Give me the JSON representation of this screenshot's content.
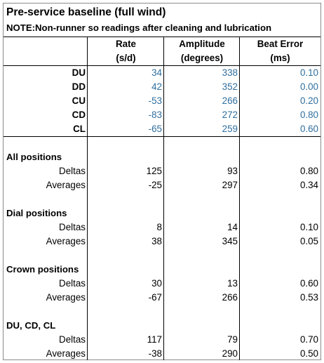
{
  "title": "Pre-service baseline (full wind)",
  "note": "NOTE:Non-runner so readings after cleaning and lubrication",
  "headers": {
    "rate": "Rate",
    "rate_unit": "(s/d)",
    "amplitude": "Amplitude",
    "amplitude_unit": "(degrees)",
    "beat_error": "Beat Error",
    "beat_error_unit": "(ms)"
  },
  "positions": [
    {
      "name": "DU",
      "rate": "34",
      "amplitude": "338",
      "beat_error": "0.10"
    },
    {
      "name": "DD",
      "rate": "42",
      "amplitude": "352",
      "beat_error": "0.00"
    },
    {
      "name": "CU",
      "rate": "-53",
      "amplitude": "266",
      "beat_error": "0.20"
    },
    {
      "name": "CD",
      "rate": "-83",
      "amplitude": "272",
      "beat_error": "0.80"
    },
    {
      "name": "CL",
      "rate": "-65",
      "amplitude": "259",
      "beat_error": "0.60"
    }
  ],
  "sections": [
    {
      "title": "All positions",
      "deltas": {
        "label": "Deltas",
        "rate": "125",
        "amplitude": "93",
        "beat_error": "0.80"
      },
      "averages": {
        "label": "Averages",
        "rate": "-25",
        "amplitude": "297",
        "beat_error": "0.34"
      }
    },
    {
      "title": "Dial positions",
      "deltas": {
        "label": "Deltas",
        "rate": "8",
        "amplitude": "14",
        "beat_error": "0.10"
      },
      "averages": {
        "label": "Averages",
        "rate": "38",
        "amplitude": "345",
        "beat_error": "0.05"
      }
    },
    {
      "title": "Crown positions",
      "deltas": {
        "label": "Deltas",
        "rate": "30",
        "amplitude": "13",
        "beat_error": "0.60"
      },
      "averages": {
        "label": "Averages",
        "rate": "-67",
        "amplitude": "266",
        "beat_error": "0.53"
      }
    },
    {
      "title": "DU, CD, CL",
      "deltas": {
        "label": "Deltas",
        "rate": "117",
        "amplitude": "79",
        "beat_error": "0.70"
      },
      "averages": {
        "label": "Averages",
        "rate": "-38",
        "amplitude": "290",
        "beat_error": "0.50"
      }
    }
  ],
  "colors": {
    "measured_values": "#2f6f9f"
  }
}
